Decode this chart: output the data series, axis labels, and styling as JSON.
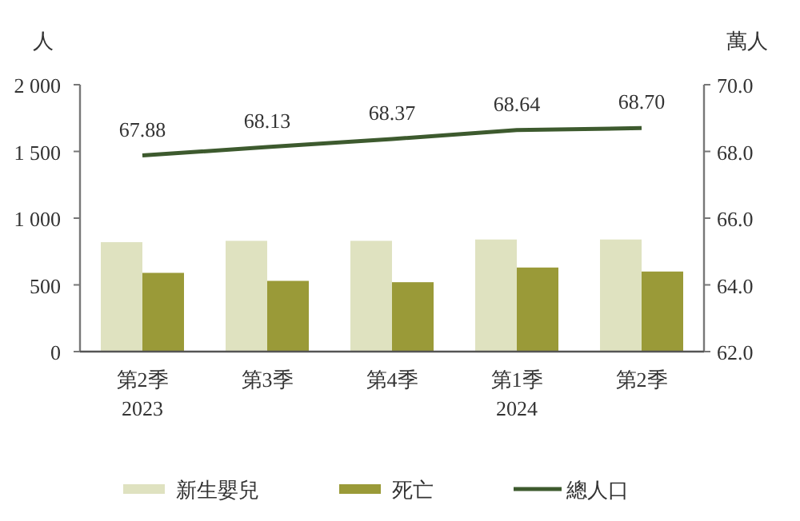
{
  "chart_data": {
    "type": "bar",
    "categories": [
      "第2季\n2023",
      "第3季",
      "第4季",
      "第1季\n2024",
      "第2季"
    ],
    "ylabel": "人",
    "y2label": "萬人",
    "ylim": [
      0,
      2000
    ],
    "yticks": [
      0,
      {
        "value": 500,
        "label": "500"
      },
      {
        "value": 1000,
        "label": "1 000"
      },
      {
        "value": 1500,
        "label": "1 500"
      },
      {
        "value": 2000,
        "label": "2 000"
      }
    ],
    "y2lim": [
      62,
      70
    ],
    "y2ticks": [
      {
        "value": 62,
        "label": "62.0"
      },
      {
        "value": 64,
        "label": "64.0"
      },
      {
        "value": 66,
        "label": "66.0"
      },
      {
        "value": 68,
        "label": "68.0"
      },
      {
        "value": 70,
        "label": "70.0"
      }
    ],
    "series": [
      {
        "name": "新生嬰兒",
        "color": "#dfe2c0",
        "values": [
          820,
          830,
          830,
          840,
          840
        ]
      },
      {
        "name": "死亡",
        "color": "#9a9a38",
        "values": [
          590,
          530,
          520,
          630,
          600
        ]
      },
      {
        "name": "總人口",
        "type": "line",
        "axis": "y2",
        "color": "#3d5a2e",
        "values": [
          67.88,
          68.13,
          68.37,
          68.64,
          68.7
        ],
        "value_labels": [
          "67.88",
          "68.13",
          "68.37",
          "68.64",
          "68.70"
        ]
      }
    ],
    "legend": "bottom",
    "grid": false
  }
}
